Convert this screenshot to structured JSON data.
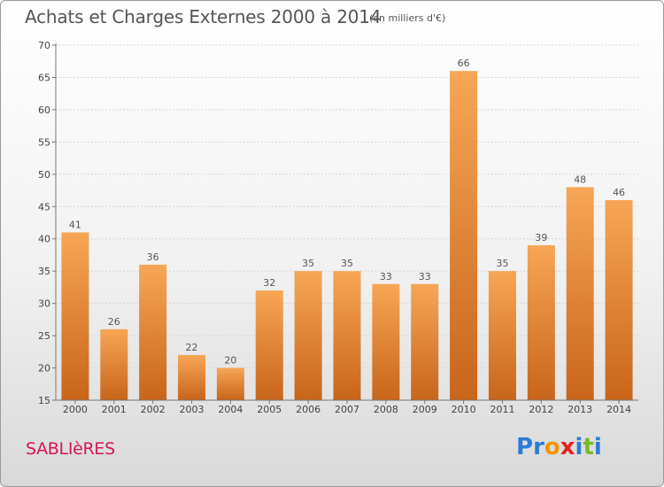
{
  "header": {
    "title": "Achats et Charges Externes 2000 à 2014",
    "unit": "(en milliers d'€)"
  },
  "footer": {
    "place": "SABLIèRES",
    "logo_letters": [
      {
        "ch": "P",
        "color": "#2b7cd3"
      },
      {
        "ch": "r",
        "color": "#2b7cd3"
      },
      {
        "ch": "o",
        "color": "#f39200"
      },
      {
        "ch": "x",
        "color": "#e2241a"
      },
      {
        "ch": "i",
        "color": "#2b7cd3"
      },
      {
        "ch": "t",
        "color": "#7ab929"
      },
      {
        "ch": "i",
        "color": "#2b7cd3"
      }
    ]
  },
  "chart_data": {
    "type": "bar",
    "categories": [
      "2000",
      "2001",
      "2002",
      "2003",
      "2004",
      "2005",
      "2006",
      "2007",
      "2008",
      "2009",
      "2010",
      "2011",
      "2012",
      "2013",
      "2014"
    ],
    "values": [
      41,
      26,
      36,
      22,
      20,
      32,
      35,
      35,
      33,
      33,
      66,
      35,
      39,
      48,
      46
    ],
    "ylim": [
      15,
      70
    ],
    "yticks": [
      15,
      20,
      25,
      30,
      35,
      40,
      45,
      50,
      55,
      60,
      65,
      70
    ],
    "grid": true,
    "bar_color_light": "#f7a656",
    "bar_color_dark": "#c8651a"
  }
}
